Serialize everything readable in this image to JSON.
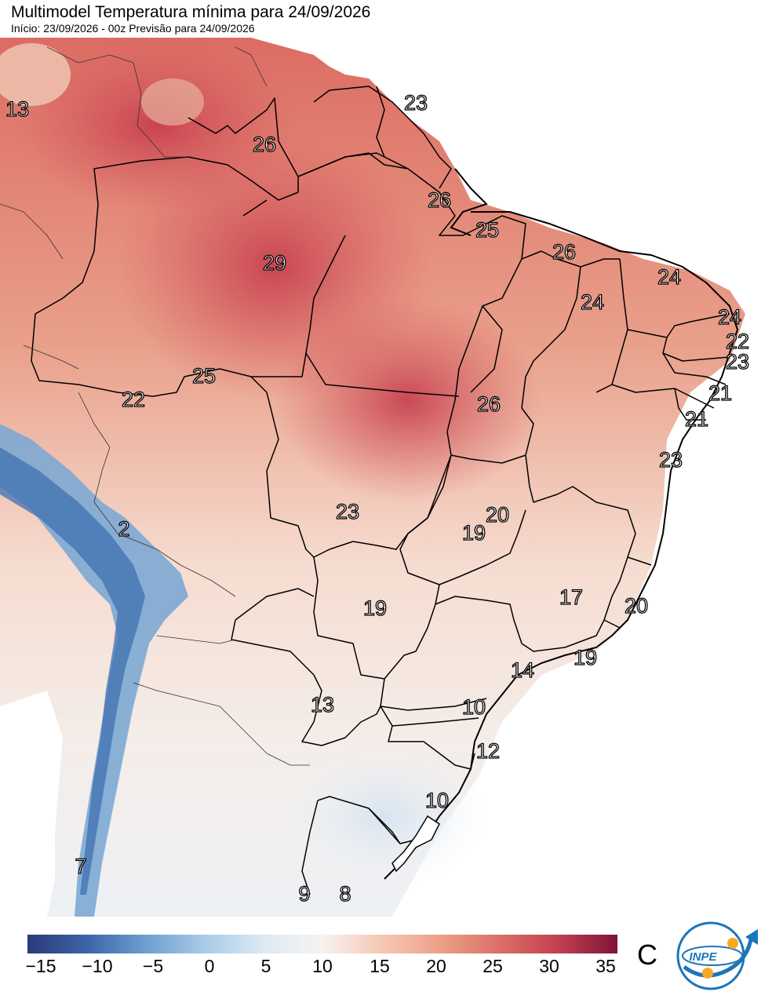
{
  "header": {
    "title": "Multimodel Temperatura mínima para 24/09/2026",
    "subtitle": "Início: 23/09/2026 - 00z  Previsão para 24/09/2026"
  },
  "map": {
    "labels": [
      "13",
      "23",
      "26",
      "26",
      "25",
      "29",
      "26",
      "24",
      "24",
      "24",
      "22",
      "23",
      "21",
      "21",
      "23",
      "26",
      "25",
      "22",
      "20",
      "19",
      "23",
      "19",
      "17",
      "20",
      "19",
      "14",
      "13",
      "10",
      "12",
      "10",
      "2",
      "7",
      "9",
      "8"
    ]
  },
  "legend": {
    "ticks": [
      "−15",
      "−10",
      "−5",
      "0",
      "5",
      "10",
      "15",
      "20",
      "25",
      "30",
      "35"
    ],
    "unit": "C",
    "colors": [
      "#2b3a78",
      "#3b64a8",
      "#6d9fd0",
      "#a9cbe6",
      "#dde9f3",
      "#f7f3f1",
      "#f6c8b2",
      "#eca089",
      "#dc6f66",
      "#c2404f",
      "#7e1438"
    ]
  },
  "logo": {
    "text": "INPE"
  }
}
